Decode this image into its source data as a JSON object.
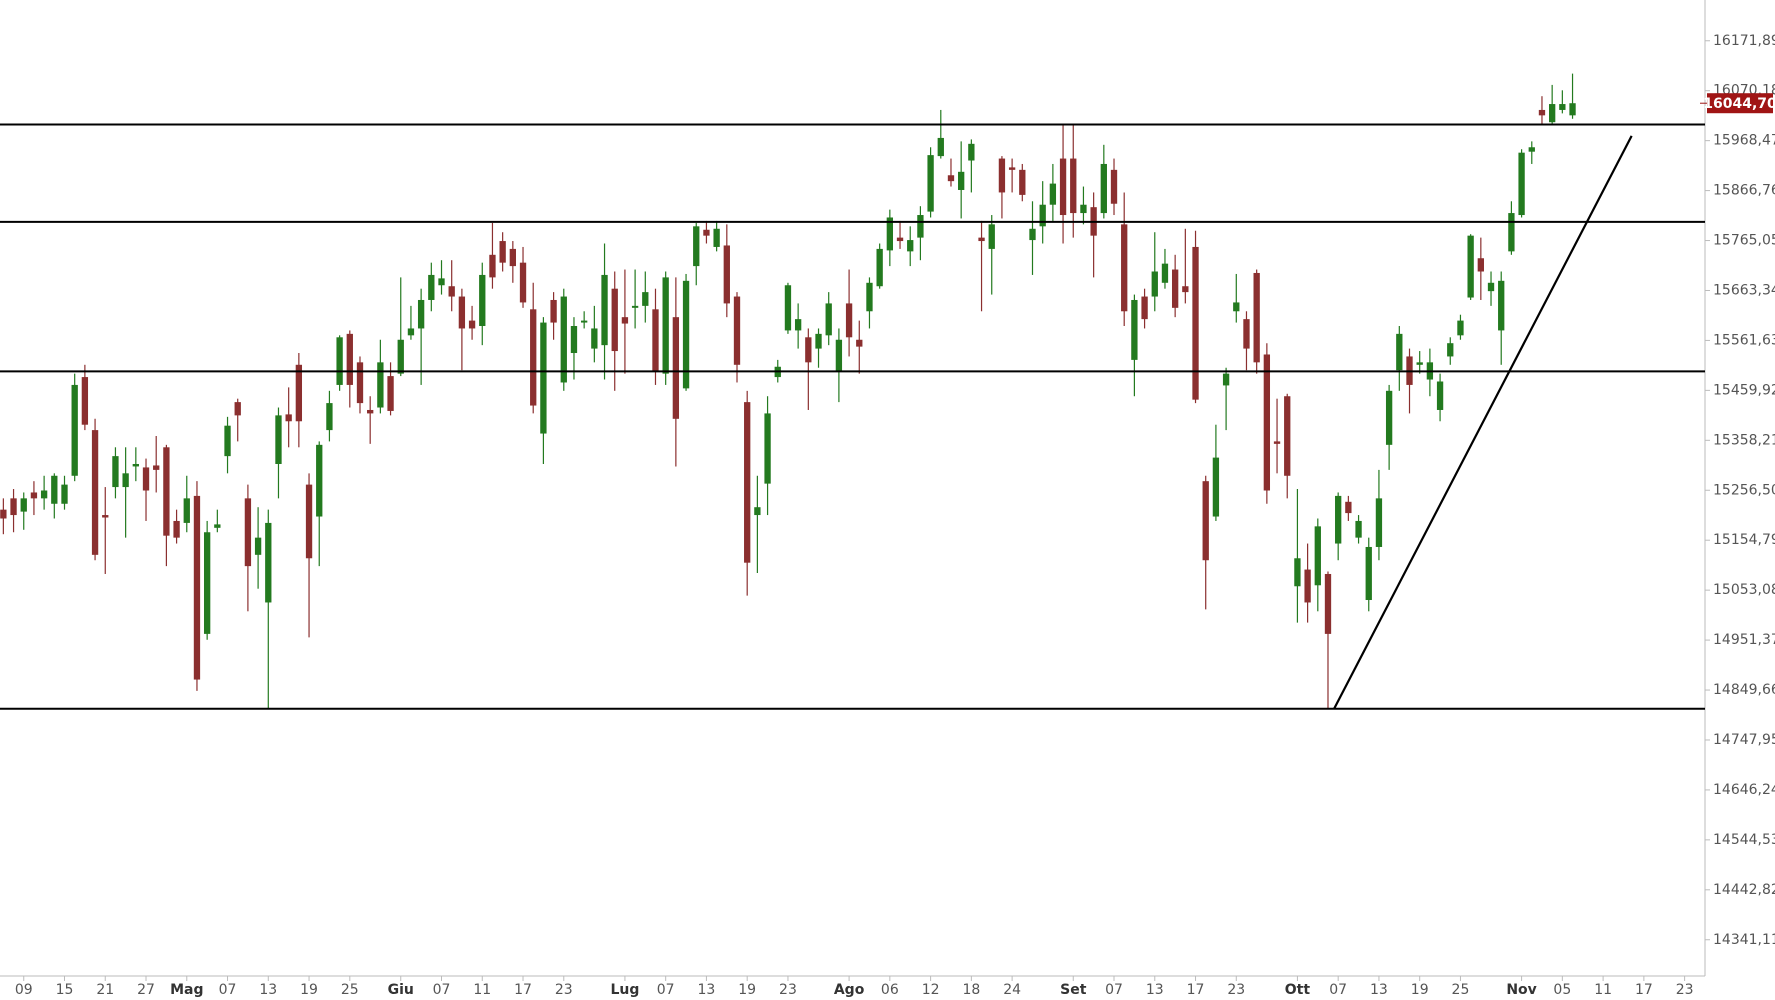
{
  "chart_data": {
    "type": "candlestick",
    "up_color": "#237a1f",
    "down_color": "#8b2f2f",
    "line_color": "#000000",
    "xlim": [
      -0.33,
      167
    ],
    "ylim": [
      14267.3,
      16254.9
    ],
    "xticks": [
      {
        "value": 2,
        "label": "09"
      },
      {
        "value": 6,
        "label": "15"
      },
      {
        "value": 10,
        "label": "21"
      },
      {
        "value": 14,
        "label": "27"
      },
      {
        "value": 18,
        "label": "Mag"
      },
      {
        "value": 22,
        "label": "07"
      },
      {
        "value": 26,
        "label": "13"
      },
      {
        "value": 30,
        "label": "19"
      },
      {
        "value": 34,
        "label": "25"
      },
      {
        "value": 39,
        "label": "Giu"
      },
      {
        "value": 43,
        "label": "07"
      },
      {
        "value": 47,
        "label": "11"
      },
      {
        "value": 51,
        "label": "17"
      },
      {
        "value": 55,
        "label": "23"
      },
      {
        "value": 61,
        "label": "Lug"
      },
      {
        "value": 65,
        "label": "07"
      },
      {
        "value": 69,
        "label": "13"
      },
      {
        "value": 73,
        "label": "19"
      },
      {
        "value": 77,
        "label": "23"
      },
      {
        "value": 83,
        "label": "Ago"
      },
      {
        "value": 87,
        "label": "06"
      },
      {
        "value": 91,
        "label": "12"
      },
      {
        "value": 95,
        "label": "18"
      },
      {
        "value": 99,
        "label": "24"
      },
      {
        "value": 105,
        "label": "Set"
      },
      {
        "value": 109,
        "label": "07"
      },
      {
        "value": 113,
        "label": "13"
      },
      {
        "value": 117,
        "label": "17"
      },
      {
        "value": 121,
        "label": "23"
      },
      {
        "value": 127,
        "label": "Ott"
      },
      {
        "value": 131,
        "label": "07"
      },
      {
        "value": 135,
        "label": "13"
      },
      {
        "value": 139,
        "label": "19"
      },
      {
        "value": 143,
        "label": "25"
      },
      {
        "value": 149,
        "label": "Nov"
      },
      {
        "value": 153,
        "label": "05"
      },
      {
        "value": 157,
        "label": "11"
      },
      {
        "value": 161,
        "label": "17"
      },
      {
        "value": 165,
        "label": "23"
      }
    ],
    "yticks": [
      {
        "value": 16171.89,
        "label": "16171,89"
      },
      {
        "value": 16070.18,
        "label": "16070,18"
      },
      {
        "value": 15968.47,
        "label": "15968,47"
      },
      {
        "value": 15866.76,
        "label": "15866,76"
      },
      {
        "value": 15765.05,
        "label": "15765,05"
      },
      {
        "value": 15663.34,
        "label": "15663,34"
      },
      {
        "value": 15561.63,
        "label": "15561,63"
      },
      {
        "value": 15459.92,
        "label": "15459,92"
      },
      {
        "value": 15358.21,
        "label": "15358,21"
      },
      {
        "value": 15256.5,
        "label": "15256,50"
      },
      {
        "value": 15154.79,
        "label": "15154,79"
      },
      {
        "value": 15053.08,
        "label": "15053,08"
      },
      {
        "value": 14951.37,
        "label": "14951,37"
      },
      {
        "value": 14849.66,
        "label": "14849,66"
      },
      {
        "value": 14747.95,
        "label": "14747,95"
      },
      {
        "value": 14646.24,
        "label": "14646,24"
      },
      {
        "value": 14544.53,
        "label": "14544,53"
      },
      {
        "value": 14442.82,
        "label": "14442,82"
      },
      {
        "value": 14341.11,
        "label": "14341,11"
      }
    ],
    "last_price": {
      "value": 16044.7,
      "label": "16044,70"
    },
    "last_price_color": "#a01515",
    "levels": [
      16001.3,
      15803.0,
      15498.7,
      14811.6
    ],
    "trendline": {
      "x": [
        130.6,
        159.8
      ],
      "y": [
        14811.6,
        15978.2
      ]
    },
    "x": [
      0,
      1,
      2,
      3,
      4,
      5,
      6,
      7,
      8,
      9,
      10,
      11,
      12,
      13,
      14,
      15,
      16,
      17,
      18,
      19,
      20,
      21,
      22,
      23,
      24,
      25,
      26,
      27,
      28,
      29,
      30,
      31,
      32,
      33,
      34,
      35,
      36,
      37,
      38,
      39,
      40,
      41,
      42,
      43,
      44,
      45,
      46,
      47,
      48,
      49,
      50,
      51,
      52,
      53,
      54,
      55,
      56,
      57,
      58,
      59,
      60,
      61,
      62,
      63,
      64,
      65,
      66,
      67,
      68,
      69,
      70,
      71,
      72,
      73,
      74,
      75,
      76,
      77,
      78,
      79,
      80,
      81,
      82,
      83,
      84,
      85,
      86,
      87,
      88,
      89,
      90,
      91,
      92,
      93,
      94,
      95,
      96,
      97,
      98,
      99,
      100,
      101,
      102,
      103,
      104,
      105,
      106,
      107,
      108,
      109,
      110,
      111,
      112,
      113,
      114,
      115,
      116,
      117,
      118,
      119,
      120,
      121,
      122,
      123,
      124,
      125,
      126,
      127,
      128,
      129,
      130,
      131,
      132,
      133,
      134,
      135,
      136,
      137,
      138,
      139,
      140,
      141,
      142,
      143,
      144,
      145,
      146,
      147,
      148,
      149,
      150,
      151,
      152,
      153,
      154
    ],
    "ohlc": [
      [
        15217,
        15240,
        15167,
        15199
      ],
      [
        15240,
        15259,
        15171,
        15206
      ],
      [
        15213,
        15252,
        15176,
        15240
      ],
      [
        15252,
        15275,
        15206,
        15240
      ],
      [
        15240,
        15286,
        15217,
        15256
      ],
      [
        15229,
        15291,
        15199,
        15286
      ],
      [
        15229,
        15286,
        15217,
        15268
      ],
      [
        15286,
        15494,
        15275,
        15471
      ],
      [
        15487,
        15512,
        15379,
        15390
      ],
      [
        15379,
        15402,
        15114,
        15125
      ],
      [
        15206,
        15263,
        15086,
        15201
      ],
      [
        15263,
        15344,
        15240,
        15326
      ],
      [
        15263,
        15344,
        15160,
        15291
      ],
      [
        15305,
        15344,
        15275,
        15310
      ],
      [
        15303,
        15321,
        15194,
        15256
      ],
      [
        15307,
        15367,
        15252,
        15298
      ],
      [
        15344,
        15349,
        15102,
        15164
      ],
      [
        15194,
        15217,
        15148,
        15160
      ],
      [
        15190,
        15286,
        15171,
        15240
      ],
      [
        15245,
        15275,
        14848,
        14871
      ],
      [
        14964,
        15194,
        14952,
        15171
      ],
      [
        15180,
        15217,
        15171,
        15187
      ],
      [
        15326,
        15406,
        15291,
        15388
      ],
      [
        15436,
        15443,
        15356,
        15409
      ],
      [
        15240,
        15268,
        15010,
        15102
      ],
      [
        15125,
        15222,
        15056,
        15160
      ],
      [
        15028,
        15217,
        14811,
        15190
      ],
      [
        15310,
        15425,
        15240,
        15409
      ],
      [
        15411,
        15466,
        15344,
        15397
      ],
      [
        15512,
        15536,
        15344,
        15397
      ],
      [
        15268,
        15291,
        14957,
        15118
      ],
      [
        15203,
        15356,
        15102,
        15349
      ],
      [
        15379,
        15459,
        15356,
        15434
      ],
      [
        15471,
        15572,
        15459,
        15568
      ],
      [
        15575,
        15582,
        15425,
        15471
      ],
      [
        15517,
        15529,
        15413,
        15434
      ],
      [
        15420,
        15448,
        15351,
        15413
      ],
      [
        15425,
        15563,
        15413,
        15517
      ],
      [
        15489,
        15517,
        15409,
        15418
      ],
      [
        15494,
        15690,
        15489,
        15563
      ],
      [
        15572,
        15632,
        15563,
        15586
      ],
      [
        15586,
        15667,
        15471,
        15644
      ],
      [
        15644,
        15720,
        15621,
        15695
      ],
      [
        15674,
        15725,
        15655,
        15688
      ],
      [
        15672,
        15725,
        15621,
        15651
      ],
      [
        15651,
        15667,
        15501,
        15586
      ],
      [
        15602,
        15632,
        15563,
        15586
      ],
      [
        15591,
        15720,
        15552,
        15695
      ],
      [
        15736,
        15801,
        15667,
        15690
      ],
      [
        15764,
        15782,
        15702,
        15720
      ],
      [
        15748,
        15764,
        15679,
        15713
      ],
      [
        15720,
        15752,
        15628,
        15639
      ],
      [
        15625,
        15679,
        15413,
        15429
      ],
      [
        15372,
        15609,
        15310,
        15598
      ],
      [
        15644,
        15660,
        15563,
        15598
      ],
      [
        15476,
        15667,
        15459,
        15651
      ],
      [
        15536,
        15609,
        15482,
        15591
      ],
      [
        15598,
        15621,
        15586,
        15602
      ],
      [
        15545,
        15632,
        15517,
        15586
      ],
      [
        15552,
        15759,
        15482,
        15695
      ],
      [
        15667,
        15702,
        15459,
        15540
      ],
      [
        15609,
        15706,
        15494,
        15596
      ],
      [
        15628,
        15706,
        15586,
        15632
      ],
      [
        15632,
        15702,
        15598,
        15660
      ],
      [
        15625,
        15667,
        15471,
        15499
      ],
      [
        15494,
        15702,
        15471,
        15690
      ],
      [
        15609,
        15690,
        15305,
        15402
      ],
      [
        15464,
        15697,
        15459,
        15683
      ],
      [
        15713,
        15801,
        15674,
        15794
      ],
      [
        15787,
        15805,
        15759,
        15775
      ],
      [
        15752,
        15805,
        15743,
        15789
      ],
      [
        15755,
        15798,
        15609,
        15637
      ],
      [
        15651,
        15660,
        15476,
        15512
      ],
      [
        15436,
        15459,
        15042,
        15109
      ],
      [
        15206,
        15286,
        15088,
        15222
      ],
      [
        15270,
        15448,
        15206,
        15413
      ],
      [
        15487,
        15522,
        15476,
        15508
      ],
      [
        15582,
        15679,
        15575,
        15674
      ],
      [
        15582,
        15637,
        15545,
        15605
      ],
      [
        15568,
        15586,
        15420,
        15517
      ],
      [
        15545,
        15586,
        15506,
        15575
      ],
      [
        15572,
        15660,
        15552,
        15637
      ],
      [
        15499,
        15586,
        15436,
        15563
      ],
      [
        15637,
        15706,
        15529,
        15568
      ],
      [
        15563,
        15602,
        15494,
        15549
      ],
      [
        15621,
        15690,
        15586,
        15679
      ],
      [
        15672,
        15759,
        15667,
        15748
      ],
      [
        15745,
        15828,
        15713,
        15812
      ],
      [
        15771,
        15805,
        15748,
        15764
      ],
      [
        15743,
        15794,
        15713,
        15766
      ],
      [
        15771,
        15835,
        15725,
        15817
      ],
      [
        15824,
        15955,
        15812,
        15939
      ],
      [
        15937,
        16031,
        15932,
        15974
      ],
      [
        15898,
        15932,
        15875,
        15886
      ],
      [
        15868,
        15967,
        15810,
        15905
      ],
      [
        15928,
        15971,
        15863,
        15962
      ],
      [
        15771,
        15805,
        15621,
        15764
      ],
      [
        15748,
        15817,
        15655,
        15798
      ],
      [
        15932,
        15937,
        15810,
        15863
      ],
      [
        15914,
        15932,
        15863,
        15909
      ],
      [
        15909,
        15921,
        15845,
        15858
      ],
      [
        15766,
        15845,
        15695,
        15789
      ],
      [
        15794,
        15886,
        15759,
        15838
      ],
      [
        15838,
        15921,
        15805,
        15881
      ],
      [
        15932,
        16001,
        15759,
        15817
      ],
      [
        15932,
        16001,
        15771,
        15821
      ],
      [
        15821,
        15875,
        15798,
        15838
      ],
      [
        15833,
        15863,
        15690,
        15775
      ],
      [
        15821,
        15960,
        15810,
        15921
      ],
      [
        15909,
        15932,
        15817,
        15840
      ],
      [
        15798,
        15863,
        15591,
        15621
      ],
      [
        15522,
        15655,
        15448,
        15644
      ],
      [
        15651,
        15667,
        15586,
        15605
      ],
      [
        15651,
        15782,
        15621,
        15702
      ],
      [
        15679,
        15748,
        15667,
        15718
      ],
      [
        15706,
        15736,
        15609,
        15628
      ],
      [
        15672,
        15789,
        15637,
        15660
      ],
      [
        15752,
        15785,
        15434,
        15441
      ],
      [
        15275,
        15286,
        15014,
        15114
      ],
      [
        15203,
        15390,
        15194,
        15323
      ],
      [
        15470,
        15506,
        15379,
        15494
      ],
      [
        15621,
        15697,
        15598,
        15639
      ],
      [
        15605,
        15621,
        15501,
        15545
      ],
      [
        15699,
        15706,
        15494,
        15517
      ],
      [
        15533,
        15556,
        15229,
        15256
      ],
      [
        15356,
        15443,
        15291,
        15351
      ],
      [
        15448,
        15453,
        15240,
        15286
      ],
      [
        15061,
        15259,
        14987,
        15118
      ],
      [
        15095,
        15148,
        14987,
        15028
      ],
      [
        15063,
        15199,
        15010,
        15183
      ],
      [
        15086,
        15091,
        14811,
        14964
      ],
      [
        15148,
        15252,
        15114,
        15245
      ],
      [
        15233,
        15245,
        15194,
        15210
      ],
      [
        15160,
        15206,
        15148,
        15194
      ],
      [
        15033,
        15160,
        15010,
        15141
      ],
      [
        15141,
        15298,
        15114,
        15240
      ],
      [
        15349,
        15471,
        15298,
        15459
      ],
      [
        15501,
        15591,
        15459,
        15575
      ],
      [
        15529,
        15545,
        15413,
        15471
      ],
      [
        15512,
        15540,
        15494,
        15517
      ],
      [
        15482,
        15545,
        15448,
        15517
      ],
      [
        15420,
        15494,
        15397,
        15478
      ],
      [
        15529,
        15568,
        15512,
        15556
      ],
      [
        15572,
        15614,
        15563,
        15602
      ],
      [
        15649,
        15778,
        15644,
        15775
      ],
      [
        15729,
        15771,
        15644,
        15702
      ],
      [
        15662,
        15702,
        15632,
        15679
      ],
      [
        15582,
        15702,
        15512,
        15683
      ],
      [
        15743,
        15845,
        15736,
        15821
      ],
      [
        15817,
        15951,
        15812,
        15944
      ],
      [
        15946,
        15967,
        15921,
        15955
      ],
      [
        16031,
        16059,
        16001,
        16020
      ],
      [
        16006,
        16082,
        16001,
        16043
      ],
      [
        16031,
        16071,
        16024,
        16043
      ],
      [
        16020,
        16105,
        16013,
        16044.7
      ]
    ]
  }
}
